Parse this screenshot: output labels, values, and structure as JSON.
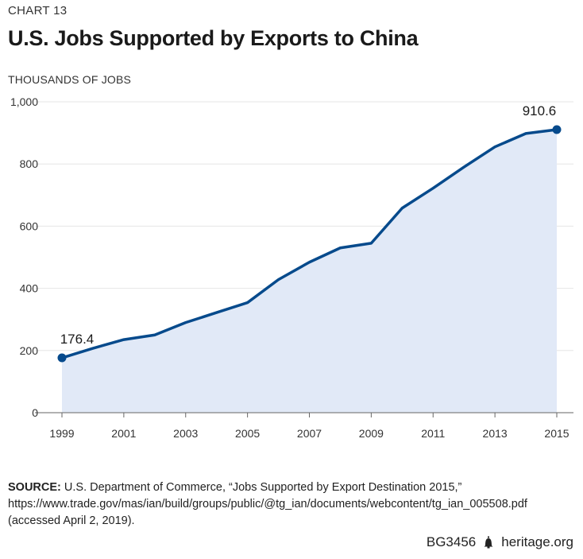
{
  "header": {
    "chart_label": "CHART 13",
    "title": "U.S. Jobs Supported by Exports to China"
  },
  "chart_data": {
    "type": "area",
    "title": "U.S. Jobs Supported by Exports to China",
    "ylabel": "THOUSANDS OF JOBS",
    "xlabel": "",
    "x": [
      1999,
      2000,
      2001,
      2002,
      2003,
      2004,
      2005,
      2006,
      2007,
      2008,
      2009,
      2010,
      2011,
      2012,
      2013,
      2014,
      2015
    ],
    "values": [
      176.4,
      207,
      235,
      250,
      290,
      322,
      354,
      428,
      484,
      530,
      545,
      658,
      722,
      790,
      855,
      898,
      910.6
    ],
    "ylim": [
      0,
      1000
    ],
    "xlim": [
      1999,
      2015
    ],
    "y_ticks": [
      0,
      200,
      400,
      600,
      800,
      1000
    ],
    "y_tick_labels": [
      "0",
      "200",
      "400",
      "600",
      "800",
      "1,000"
    ],
    "x_ticks": [
      1999,
      2001,
      2003,
      2005,
      2007,
      2009,
      2011,
      2013,
      2015
    ],
    "x_tick_labels": [
      "1999",
      "2001",
      "2003",
      "2005",
      "2007",
      "2009",
      "2011",
      "2013",
      "2015"
    ],
    "annotations": [
      {
        "x": 1999,
        "y": 176.4,
        "text": "176.4"
      },
      {
        "x": 2015,
        "y": 910.6,
        "text": "910.6"
      }
    ],
    "grid": true,
    "legend": "none",
    "line_color": "#064a8c",
    "fill_color": "#e1e9f7",
    "grid_color": "#e6e6e6"
  },
  "source": {
    "lead": "SOURCE:",
    "text": " U.S. Department of Commerce, “Jobs Supported by Export Destination 2015,” https://www.trade.gov/mas/ian/build/groups/public/@tg_ian/documents/webcontent/tg_ian_005508.pdf (accessed April 2, 2019)."
  },
  "footer": {
    "code": "BG3456",
    "site": "heritage.org",
    "icon": "liberty-bell-icon"
  }
}
